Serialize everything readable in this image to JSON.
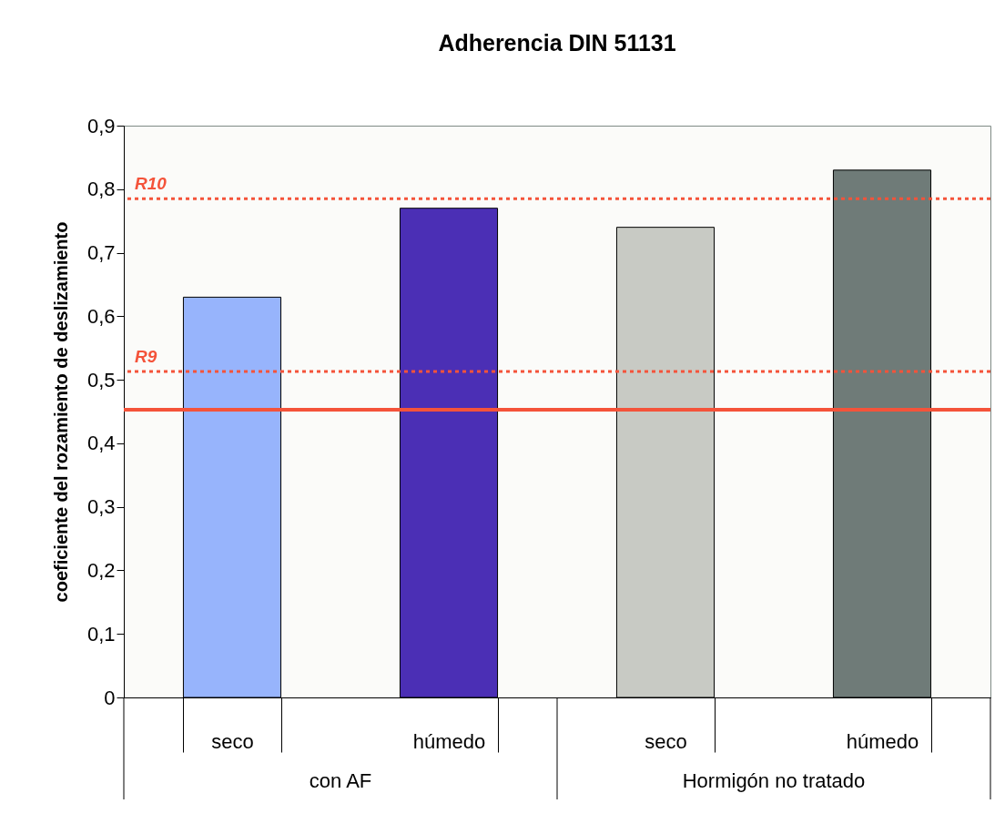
{
  "chart_data": {
    "type": "bar",
    "title": "Adherencia DIN 51131",
    "ylabel": "coeficiente del rozamiento de deslizamiento",
    "categories": [
      "seco",
      "húmedo",
      "seco",
      "húmedo"
    ],
    "values": [
      0.63,
      0.77,
      0.74,
      0.83
    ],
    "colors": [
      "#97b4fc",
      "#4b2fb5",
      "#c8cac4",
      "#6f7b78"
    ],
    "ylim": [
      0,
      0.9
    ],
    "yticks": [
      {
        "value": 0,
        "label": "0"
      },
      {
        "value": 0.1,
        "label": "0,1"
      },
      {
        "value": 0.2,
        "label": "0,2"
      },
      {
        "value": 0.3,
        "label": "0,3"
      },
      {
        "value": 0.4,
        "label": "0,4"
      },
      {
        "value": 0.5,
        "label": "0,5"
      },
      {
        "value": 0.6,
        "label": "0,6"
      },
      {
        "value": 0.7,
        "label": "0,7"
      },
      {
        "value": 0.8,
        "label": "0,8"
      },
      {
        "value": 0.9,
        "label": "0,9"
      }
    ],
    "ref_lines": [
      {
        "axis": "y",
        "value": 0.785,
        "label": "R10",
        "color": "#f4533a",
        "line_style": "dotted"
      },
      {
        "axis": "y",
        "value": 0.513,
        "label": "R9",
        "color": "#f4533a",
        "line_style": "dotted"
      },
      {
        "axis": "y",
        "value": 0.453,
        "color": "#f4533a",
        "line_style": "solid"
      }
    ],
    "annotations": [
      "con AF",
      "Hormigón no tratado"
    ],
    "grid": false,
    "legend": false
  }
}
